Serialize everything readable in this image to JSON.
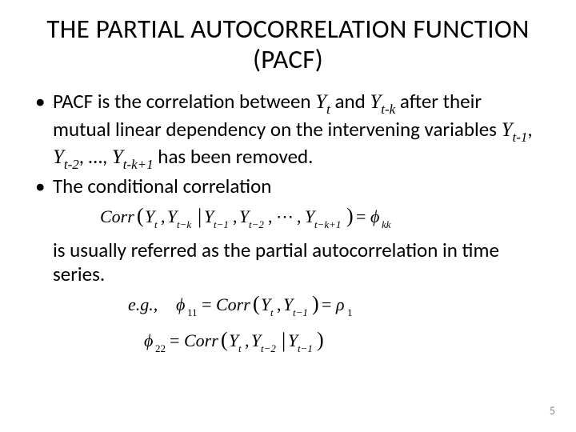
{
  "title": "THE PARTIAL AUTOCORRELATION FUNCTION (PACF)",
  "bullets": {
    "b1_pre": "PACF is the correlation between ",
    "b1_yt": "Y",
    "b1_yt_sub": "t",
    "b1_and": " and ",
    "b1_ytk": "Y",
    "b1_ytk_sub": "t-k",
    "b1_mid": " after their mutual linear dependency on the intervening variables ",
    "b1_v1": "Y",
    "b1_v1_sub": "t-1",
    "b1_c1": ", ",
    "b1_v2": "Y",
    "b1_v2_sub": "t-2",
    "b1_c2": ", …, ",
    "b1_v3": "Y",
    "b1_v3_sub": "t-k+1",
    "b1_end": " has been removed.",
    "b2": "The conditional correlation"
  },
  "cont": "is usually referred as the partial autocorrelation in time series.",
  "page_number": "5",
  "formula1": {
    "text_parts": [
      "Corr",
      "(",
      "Y",
      "t",
      ",",
      "Y",
      "t−k",
      "|",
      "Y",
      "t−1",
      ",",
      "Y",
      "t−2",
      ",",
      "⋯",
      ",",
      "Y",
      "t−k+1",
      ")",
      "=",
      "ϕ",
      "kk"
    ],
    "font_family": "Times New Roman",
    "font_style": "italic",
    "font_size_main": 22,
    "font_size_sub": 14,
    "color": "#000000"
  },
  "formula2": {
    "prefix": "e.g.,  ",
    "text_parts": [
      "ϕ",
      "11",
      "=",
      "Corr",
      "(",
      "Y",
      "t",
      ",",
      "Y",
      "t−1",
      ")",
      "=",
      "ρ",
      "1"
    ],
    "font_family": "Times New Roman",
    "font_style": "italic",
    "font_size_main": 22,
    "font_size_sub": 14,
    "color": "#000000"
  },
  "formula3": {
    "text_parts": [
      "ϕ",
      "22",
      "=",
      "Corr",
      "(",
      "Y",
      "t",
      ",",
      "Y",
      "t−2",
      "|",
      "Y",
      "t−1",
      ")"
    ],
    "font_family": "Times New Roman",
    "font_style": "italic",
    "font_size_main": 22,
    "font_size_sub": 14,
    "color": "#000000"
  }
}
